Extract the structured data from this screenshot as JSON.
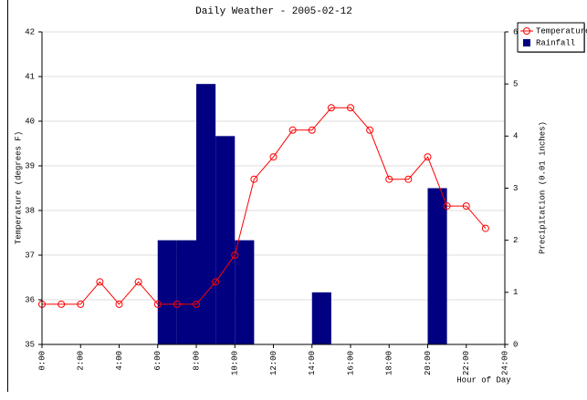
{
  "chart_data": {
    "type": "line-bar",
    "title": "Daily Weather - 2005-02-12",
    "x_label": "Hour of Day",
    "y_label": "Temperature (degrees F)",
    "y2_label": "Precipitation (0.01 inches)",
    "x": [
      0,
      1,
      2,
      3,
      4,
      5,
      6,
      7,
      8,
      9,
      10,
      11,
      12,
      13,
      14,
      15,
      16,
      17,
      18,
      19,
      20,
      21,
      22,
      23
    ],
    "series": [
      {
        "name": "Temperature",
        "type": "line",
        "color": "#ff0000",
        "axis": "y",
        "values": [
          35.9,
          35.9,
          35.9,
          36.4,
          35.9,
          36.4,
          35.9,
          35.9,
          35.9,
          36.4,
          37.0,
          38.7,
          39.2,
          39.8,
          39.8,
          40.3,
          40.3,
          39.8,
          38.7,
          38.7,
          39.2,
          38.1,
          38.1,
          37.6
        ]
      },
      {
        "name": "Rainfall",
        "type": "bar",
        "color": "#000080",
        "axis": "y2",
        "values": [
          0,
          0,
          0,
          0,
          0,
          0,
          2,
          2,
          5,
          4,
          2,
          0,
          0,
          0,
          1,
          0,
          0,
          0,
          0,
          0,
          3,
          0,
          0,
          0
        ]
      }
    ],
    "xlim": [
      0,
      24
    ],
    "xticks": [
      {
        "value": 0,
        "label": "0:00"
      },
      {
        "value": 2,
        "label": "2:00"
      },
      {
        "value": 4,
        "label": "4:00"
      },
      {
        "value": 6,
        "label": "6:00"
      },
      {
        "value": 8,
        "label": "8:00"
      },
      {
        "value": 10,
        "label": "10:00"
      },
      {
        "value": 12,
        "label": "12:00"
      },
      {
        "value": 14,
        "label": "14:00"
      },
      {
        "value": 16,
        "label": "16:00"
      },
      {
        "value": 18,
        "label": "18:00"
      },
      {
        "value": 20,
        "label": "20:00"
      },
      {
        "value": 22,
        "label": "22:00"
      },
      {
        "value": 24,
        "label": "24:00"
      }
    ],
    "ylim": [
      35,
      42
    ],
    "yticks": [
      35,
      36,
      37,
      38,
      39,
      40,
      41,
      42
    ],
    "y2lim": [
      0,
      6
    ],
    "y2ticks": [
      0,
      1,
      2,
      3,
      4,
      5,
      6
    ],
    "grid": true,
    "legend": "top-right"
  }
}
